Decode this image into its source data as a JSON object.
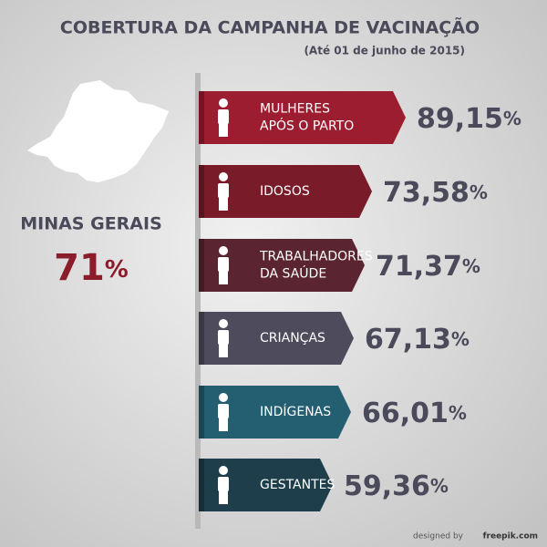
{
  "header": {
    "title": "COBERTURA DA CAMPANHA DE VACINAÇÃO",
    "subtitle": "(Até 01 de junho de 2015)"
  },
  "region": {
    "name": "MINAS GERAIS",
    "value": "71",
    "unit": "%"
  },
  "items": [
    {
      "label": [
        "MULHERES",
        "APÓS O PARTO"
      ],
      "value": "89,15",
      "unit": "%"
    },
    {
      "label": [
        "IDOSOS"
      ],
      "value": "73,58",
      "unit": "%"
    },
    {
      "label": [
        "TRABALHADORES",
        "DA SAÚDE"
      ],
      "value": "71,37",
      "unit": "%"
    },
    {
      "label": [
        "CRIANÇAS"
      ],
      "value": "67,13",
      "unit": "%"
    },
    {
      "label": [
        "INDÍGENAS"
      ],
      "value": "66,01",
      "unit": "%"
    },
    {
      "label": [
        "GESTANTES"
      ],
      "value": "59,36",
      "unit": "%"
    }
  ],
  "footer": {
    "credit": "designed by",
    "brand": "freepik.com"
  }
}
